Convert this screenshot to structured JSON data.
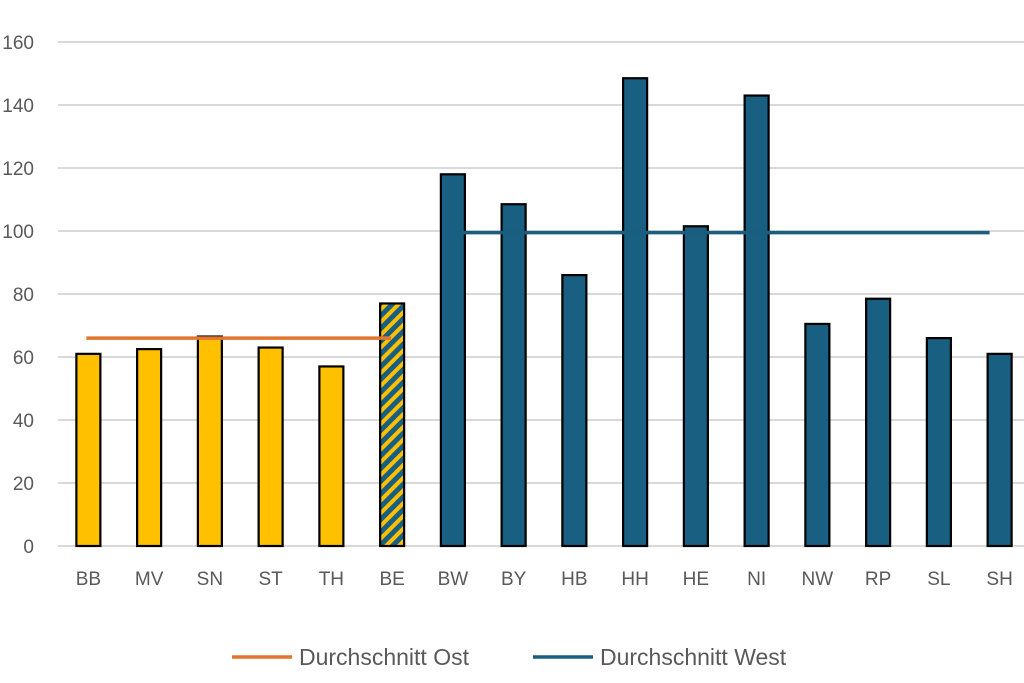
{
  "chart_data": {
    "type": "bar",
    "categories": [
      "BB",
      "MV",
      "SN",
      "ST",
      "TH",
      "BE",
      "BW",
      "BY",
      "HB",
      "HH",
      "HE",
      "NI",
      "NW",
      "RP",
      "SL",
      "SH"
    ],
    "values": [
      61,
      62.5,
      66.5,
      63,
      57,
      77,
      118,
      108.5,
      86,
      148.5,
      101.5,
      143,
      70.5,
      78.5,
      66,
      61
    ],
    "groups": [
      "east",
      "east",
      "east",
      "east",
      "east",
      "mixed",
      "west",
      "west",
      "west",
      "west",
      "west",
      "west",
      "west",
      "west",
      "west",
      "west"
    ],
    "ylim": [
      0,
      160
    ],
    "yticks": [
      "0",
      "20",
      "40",
      "60",
      "80",
      "100",
      "120",
      "140",
      "160"
    ],
    "grid": true,
    "legend_position": "bottom",
    "reference_lines": [
      {
        "name": "Durchschnitt Ost",
        "value": 66,
        "from": "BB",
        "to": "BE",
        "color": "#e2762f"
      },
      {
        "name": "Durchschnitt West",
        "value": 99.5,
        "from": "BW",
        "to": "SH",
        "color": "#1a5d7e"
      }
    ],
    "colors": {
      "east": "#ffc000",
      "west": "#195f82",
      "outline": "#000000"
    }
  }
}
